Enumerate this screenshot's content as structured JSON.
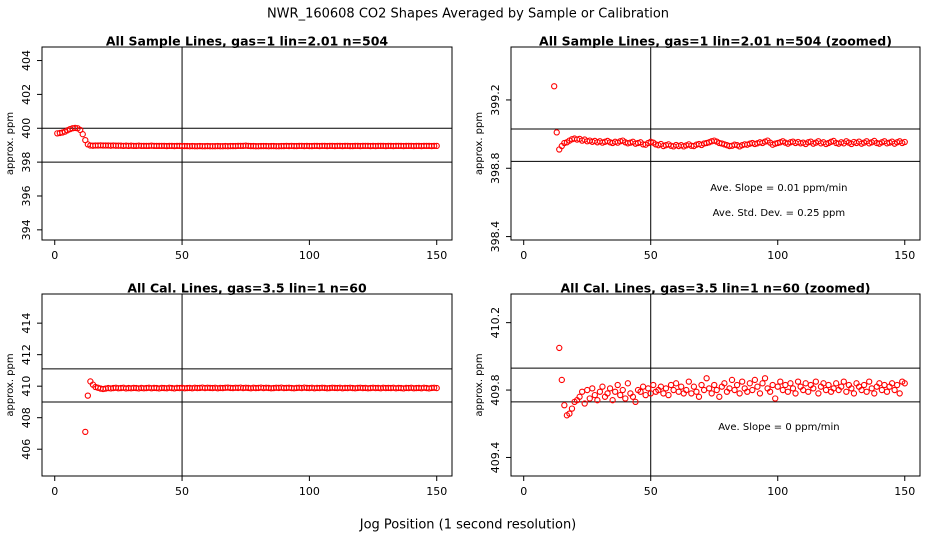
{
  "title": "NWR_160608  CO2 Shapes Averaged by Sample or Calibration",
  "xlabel": "Jog Position (1 second resolution)",
  "chart_data": [
    {
      "type": "scatter",
      "title": "All Sample Lines, gas=1 lin=2.01 n=504",
      "ylabel": "approx. ppm",
      "color": "#ff0000",
      "xlim": [
        -5,
        156
      ],
      "ylim": [
        393.4,
        404.8
      ],
      "xticks": [
        0,
        50,
        100,
        150
      ],
      "yticks": [
        394,
        396,
        398,
        400,
        402,
        404
      ],
      "hlines": [
        400,
        398
      ],
      "vlines": [
        50
      ],
      "annotations": [],
      "x": [
        1,
        2,
        3,
        4,
        5,
        6,
        7,
        8,
        9,
        10,
        11,
        12,
        13,
        14,
        15,
        16,
        17,
        18,
        19,
        20,
        21,
        22,
        23,
        24,
        25,
        26,
        27,
        28,
        29,
        30,
        31,
        32,
        33,
        34,
        35,
        36,
        37,
        38,
        39,
        40,
        41,
        42,
        43,
        44,
        45,
        46,
        47,
        48,
        49,
        50,
        51,
        52,
        53,
        54,
        55,
        56,
        57,
        58,
        59,
        60,
        61,
        62,
        63,
        64,
        65,
        66,
        67,
        68,
        69,
        70,
        71,
        72,
        73,
        74,
        75,
        76,
        77,
        78,
        79,
        80,
        81,
        82,
        83,
        84,
        85,
        86,
        87,
        88,
        89,
        90,
        91,
        92,
        93,
        94,
        95,
        96,
        97,
        98,
        99,
        100,
        101,
        102,
        103,
        104,
        105,
        106,
        107,
        108,
        109,
        110,
        111,
        112,
        113,
        114,
        115,
        116,
        117,
        118,
        119,
        120,
        121,
        122,
        123,
        124,
        125,
        126,
        127,
        128,
        129,
        130,
        131,
        132,
        133,
        134,
        135,
        136,
        137,
        138,
        139,
        140,
        141,
        142,
        143,
        144,
        145,
        146,
        147,
        148,
        149,
        150
      ],
      "values": [
        399.7,
        399.72,
        399.75,
        399.8,
        399.88,
        399.95,
        400,
        400.02,
        400,
        399.9,
        399.65,
        399.3,
        399.05,
        398.98,
        398.97,
        398.98,
        398.98,
        398.99,
        398.98,
        398.98,
        398.98,
        398.97,
        398.98,
        398.97,
        398.97,
        398.97,
        398.96,
        398.97,
        398.96,
        398.97,
        398.96,
        398.96,
        398.97,
        398.96,
        398.96,
        398.96,
        398.96,
        398.97,
        398.96,
        398.96,
        398.96,
        398.96,
        398.96,
        398.95,
        398.96,
        398.96,
        398.95,
        398.96,
        398.96,
        398.95,
        398.95,
        398.95,
        398.94,
        398.95,
        398.94,
        398.94,
        398.95,
        398.94,
        398.94,
        398.95,
        398.94,
        398.94,
        398.94,
        398.95,
        398.94,
        398.94,
        398.95,
        398.94,
        398.95,
        398.95,
        398.95,
        398.96,
        398.96,
        398.96,
        398.97,
        398.96,
        398.95,
        398.95,
        398.94,
        398.94,
        398.95,
        398.95,
        398.95,
        398.94,
        398.95,
        398.95,
        398.94,
        398.94,
        398.95,
        398.95,
        398.96,
        398.95,
        398.96,
        398.95,
        398.95,
        398.96,
        398.96,
        398.95,
        398.96,
        398.95,
        398.95,
        398.96,
        398.96,
        398.95,
        398.96,
        398.96,
        398.95,
        398.96,
        398.96,
        398.95,
        398.96,
        398.96,
        398.95,
        398.96,
        398.96,
        398.95,
        398.95,
        398.96,
        398.96,
        398.95,
        398.96,
        398.96,
        398.96,
        398.95,
        398.96,
        398.95,
        398.96,
        398.96,
        398.96,
        398.95,
        398.96,
        398.96,
        398.95,
        398.96,
        398.96,
        398.96,
        398.95,
        398.96,
        398.96,
        398.96,
        398.95,
        398.96,
        398.96,
        398.95,
        398.96,
        398.96,
        398.96,
        398.95,
        398.96,
        398.96
      ]
    },
    {
      "type": "scatter",
      "title": "All Sample Lines, gas=1 lin=2.01 n=504 (zoomed)",
      "ylabel": "approx. ppm",
      "color": "#ff0000",
      "xlim": [
        -5,
        156
      ],
      "ylim": [
        398.38,
        399.51
      ],
      "xticks": [
        0,
        50,
        100,
        150
      ],
      "yticks": [
        398.4,
        398.8,
        399.2
      ],
      "hlines": [
        399.03,
        398.84
      ],
      "vlines": [
        50
      ],
      "annotations": [
        "Ave. Slope =  0.01  ppm/min",
        "Ave. Std. Dev. =  0.25  ppm"
      ],
      "x": [
        12,
        13,
        14,
        15,
        16,
        17,
        18,
        19,
        20,
        21,
        22,
        23,
        24,
        25,
        26,
        27,
        28,
        29,
        30,
        31,
        32,
        33,
        34,
        35,
        36,
        37,
        38,
        39,
        40,
        41,
        42,
        43,
        44,
        45,
        46,
        47,
        48,
        49,
        50,
        51,
        52,
        53,
        54,
        55,
        56,
        57,
        58,
        59,
        60,
        61,
        62,
        63,
        64,
        65,
        66,
        67,
        68,
        69,
        70,
        71,
        72,
        73,
        74,
        75,
        76,
        77,
        78,
        79,
        80,
        81,
        82,
        83,
        84,
        85,
        86,
        87,
        88,
        89,
        90,
        91,
        92,
        93,
        94,
        95,
        96,
        97,
        98,
        99,
        100,
        101,
        102,
        103,
        104,
        105,
        106,
        107,
        108,
        109,
        110,
        111,
        112,
        113,
        114,
        115,
        116,
        117,
        118,
        119,
        120,
        121,
        122,
        123,
        124,
        125,
        126,
        127,
        128,
        129,
        130,
        131,
        132,
        133,
        134,
        135,
        136,
        137,
        138,
        139,
        140,
        141,
        142,
        143,
        144,
        145,
        146,
        147,
        148,
        149,
        150
      ],
      "values": [
        399.28,
        399.01,
        398.91,
        398.93,
        398.948,
        398.952,
        398.962,
        398.97,
        398.974,
        398.968,
        398.972,
        398.962,
        398.968,
        398.958,
        398.962,
        398.955,
        398.96,
        398.952,
        398.958,
        398.95,
        398.955,
        398.96,
        398.952,
        398.948,
        398.955,
        398.95,
        398.958,
        398.962,
        398.952,
        398.946,
        398.95,
        398.955,
        398.944,
        398.948,
        398.952,
        398.94,
        398.938,
        398.948,
        398.955,
        398.95,
        398.94,
        398.935,
        398.942,
        398.93,
        398.935,
        398.94,
        398.932,
        398.928,
        398.936,
        398.93,
        398.935,
        398.928,
        398.934,
        398.94,
        398.932,
        398.93,
        398.938,
        398.942,
        398.936,
        398.945,
        398.948,
        398.952,
        398.958,
        398.962,
        398.956,
        398.948,
        398.945,
        398.94,
        398.935,
        398.93,
        398.932,
        398.938,
        398.935,
        398.928,
        398.935,
        398.94,
        398.938,
        398.944,
        398.948,
        398.942,
        398.946,
        398.952,
        398.948,
        398.956,
        398.962,
        398.95,
        398.938,
        398.944,
        398.948,
        398.952,
        398.958,
        398.95,
        398.944,
        398.952,
        398.956,
        398.948,
        398.954,
        398.946,
        398.95,
        398.942,
        398.952,
        398.956,
        398.944,
        398.95,
        398.958,
        398.946,
        398.952,
        398.942,
        398.948,
        398.955,
        398.96,
        398.948,
        398.944,
        398.952,
        398.946,
        398.958,
        398.95,
        398.942,
        398.954,
        398.948,
        398.956,
        398.944,
        398.95,
        398.958,
        398.946,
        398.952,
        398.96,
        398.948,
        398.944,
        398.952,
        398.958,
        398.946,
        398.95,
        398.956,
        398.944,
        398.952,
        398.958,
        398.948,
        398.954
      ]
    },
    {
      "type": "scatter",
      "title": "All Cal. Lines, gas=3.5 lin=1 n=60",
      "ylabel": "approx. ppm",
      "color": "#ff0000",
      "xlim": [
        -5,
        156
      ],
      "ylim": [
        404.3,
        415.85
      ],
      "xticks": [
        0,
        50,
        100,
        150
      ],
      "yticks": [
        406,
        408,
        410,
        412,
        414
      ],
      "hlines": [
        411.1,
        409
      ],
      "vlines": [
        50
      ],
      "annotations": [],
      "x": [
        12,
        13,
        14,
        15,
        16,
        17,
        18,
        19,
        20,
        21,
        22,
        23,
        24,
        25,
        26,
        27,
        28,
        29,
        30,
        31,
        32,
        33,
        34,
        35,
        36,
        37,
        38,
        39,
        40,
        41,
        42,
        43,
        44,
        45,
        46,
        47,
        48,
        49,
        50,
        51,
        52,
        53,
        54,
        55,
        56,
        57,
        58,
        59,
        60,
        61,
        62,
        63,
        64,
        65,
        66,
        67,
        68,
        69,
        70,
        71,
        72,
        73,
        74,
        75,
        76,
        77,
        78,
        79,
        80,
        81,
        82,
        83,
        84,
        85,
        86,
        87,
        88,
        89,
        90,
        91,
        92,
        93,
        94,
        95,
        96,
        97,
        98,
        99,
        100,
        101,
        102,
        103,
        104,
        105,
        106,
        107,
        108,
        109,
        110,
        111,
        112,
        113,
        114,
        115,
        116,
        117,
        118,
        119,
        120,
        121,
        122,
        123,
        124,
        125,
        126,
        127,
        128,
        129,
        130,
        131,
        132,
        133,
        134,
        135,
        136,
        137,
        138,
        139,
        140,
        141,
        142,
        143,
        144,
        145,
        146,
        147,
        148,
        149,
        150
      ],
      "values": [
        407.1,
        409.4,
        410.3,
        410.1,
        409.95,
        409.9,
        409.85,
        409.82,
        409.85,
        409.88,
        409.86,
        409.88,
        409.9,
        409.87,
        409.88,
        409.9,
        409.86,
        409.88,
        409.87,
        409.89,
        409.88,
        409.86,
        409.89,
        409.87,
        409.88,
        409.9,
        409.87,
        409.89,
        409.88,
        409.86,
        409.89,
        409.88,
        409.87,
        409.9,
        409.88,
        409.86,
        409.89,
        409.88,
        409.9,
        409.87,
        409.88,
        409.89,
        409.87,
        409.9,
        409.88,
        409.89,
        409.91,
        409.88,
        409.9,
        409.89,
        409.88,
        409.9,
        409.87,
        409.89,
        409.88,
        409.9,
        409.91,
        409.89,
        409.88,
        409.9,
        409.89,
        409.91,
        409.88,
        409.9,
        409.89,
        409.87,
        409.9,
        409.88,
        409.89,
        409.91,
        409.88,
        409.9,
        409.89,
        409.87,
        409.88,
        409.9,
        409.89,
        409.91,
        409.88,
        409.89,
        409.9,
        409.88,
        409.87,
        409.89,
        409.9,
        409.88,
        409.91,
        409.89,
        409.88,
        409.9,
        409.87,
        409.89,
        409.88,
        409.9,
        409.89,
        409.87,
        409.88,
        409.9,
        409.89,
        409.88,
        409.9,
        409.87,
        409.89,
        409.88,
        409.9,
        409.88,
        409.87,
        409.89,
        409.9,
        409.88,
        409.89,
        409.87,
        409.88,
        409.9,
        409.88,
        409.89,
        409.87,
        409.9,
        409.88,
        409.89,
        409.88,
        409.9,
        409.87,
        409.89,
        409.88,
        409.86,
        409.89,
        409.88,
        409.9,
        409.87,
        409.88,
        409.89,
        409.87,
        409.9,
        409.88,
        409.86,
        409.89,
        409.9,
        409.88
      ]
    },
    {
      "type": "scatter",
      "title": "All Cal. Lines, gas=3.5 lin=1 n=60 (zoomed)",
      "ylabel": "approx. ppm",
      "color": "#ff0000",
      "xlim": [
        -5,
        156
      ],
      "ylim": [
        409.29,
        410.37
      ],
      "xticks": [
        0,
        50,
        100,
        150
      ],
      "yticks": [
        409.4,
        409.8,
        410.2
      ],
      "hlines": [
        409.93,
        409.73
      ],
      "vlines": [
        50
      ],
      "annotations": [
        "Ave. Slope =  0  ppm/min"
      ],
      "x": [
        14,
        15,
        16,
        17,
        18,
        19,
        20,
        21,
        22,
        23,
        24,
        25,
        26,
        27,
        28,
        29,
        30,
        31,
        32,
        33,
        34,
        35,
        36,
        37,
        38,
        39,
        40,
        41,
        42,
        43,
        44,
        45,
        46,
        47,
        48,
        49,
        50,
        51,
        52,
        53,
        54,
        55,
        56,
        57,
        58,
        59,
        60,
        61,
        62,
        63,
        64,
        65,
        66,
        67,
        68,
        69,
        70,
        71,
        72,
        73,
        74,
        75,
        76,
        77,
        78,
        79,
        80,
        81,
        82,
        83,
        84,
        85,
        86,
        87,
        88,
        89,
        90,
        91,
        92,
        93,
        94,
        95,
        96,
        97,
        98,
        99,
        100,
        101,
        102,
        103,
        104,
        105,
        106,
        107,
        108,
        109,
        110,
        111,
        112,
        113,
        114,
        115,
        116,
        117,
        118,
        119,
        120,
        121,
        122,
        123,
        124,
        125,
        126,
        127,
        128,
        129,
        130,
        131,
        132,
        133,
        134,
        135,
        136,
        137,
        138,
        139,
        140,
        141,
        142,
        143,
        144,
        145,
        146,
        147,
        148,
        149,
        150
      ],
      "values": [
        410.05,
        409.86,
        409.71,
        409.65,
        409.66,
        409.69,
        409.73,
        409.74,
        409.76,
        409.79,
        409.72,
        409.8,
        409.75,
        409.81,
        409.77,
        409.74,
        409.79,
        409.82,
        409.76,
        409.78,
        409.81,
        409.74,
        409.79,
        409.83,
        409.77,
        409.8,
        409.75,
        409.84,
        409.78,
        409.76,
        409.73,
        409.8,
        409.79,
        409.82,
        409.77,
        409.81,
        409.78,
        409.83,
        409.79,
        409.8,
        409.82,
        409.78,
        409.81,
        409.77,
        409.83,
        409.8,
        409.84,
        409.79,
        409.82,
        409.78,
        409.8,
        409.85,
        409.78,
        409.82,
        409.79,
        409.76,
        409.83,
        409.8,
        409.87,
        409.81,
        409.78,
        409.83,
        409.8,
        409.76,
        409.82,
        409.84,
        409.79,
        409.81,
        409.86,
        409.8,
        409.83,
        409.78,
        409.85,
        409.81,
        409.79,
        409.84,
        409.8,
        409.86,
        409.82,
        409.78,
        409.84,
        409.87,
        409.81,
        409.79,
        409.83,
        409.75,
        409.82,
        409.85,
        409.8,
        409.83,
        409.79,
        409.84,
        409.81,
        409.78,
        409.85,
        409.82,
        409.8,
        409.84,
        409.79,
        409.83,
        409.81,
        409.85,
        409.78,
        409.82,
        409.84,
        409.8,
        409.83,
        409.79,
        409.81,
        409.84,
        409.8,
        409.82,
        409.85,
        409.79,
        409.83,
        409.81,
        409.78,
        409.84,
        409.82,
        409.8,
        409.83,
        409.79,
        409.85,
        409.81,
        409.78,
        409.82,
        409.84,
        409.8,
        409.83,
        409.79,
        409.82,
        409.84,
        409.8,
        409.83,
        409.78,
        409.85,
        409.84
      ]
    }
  ]
}
